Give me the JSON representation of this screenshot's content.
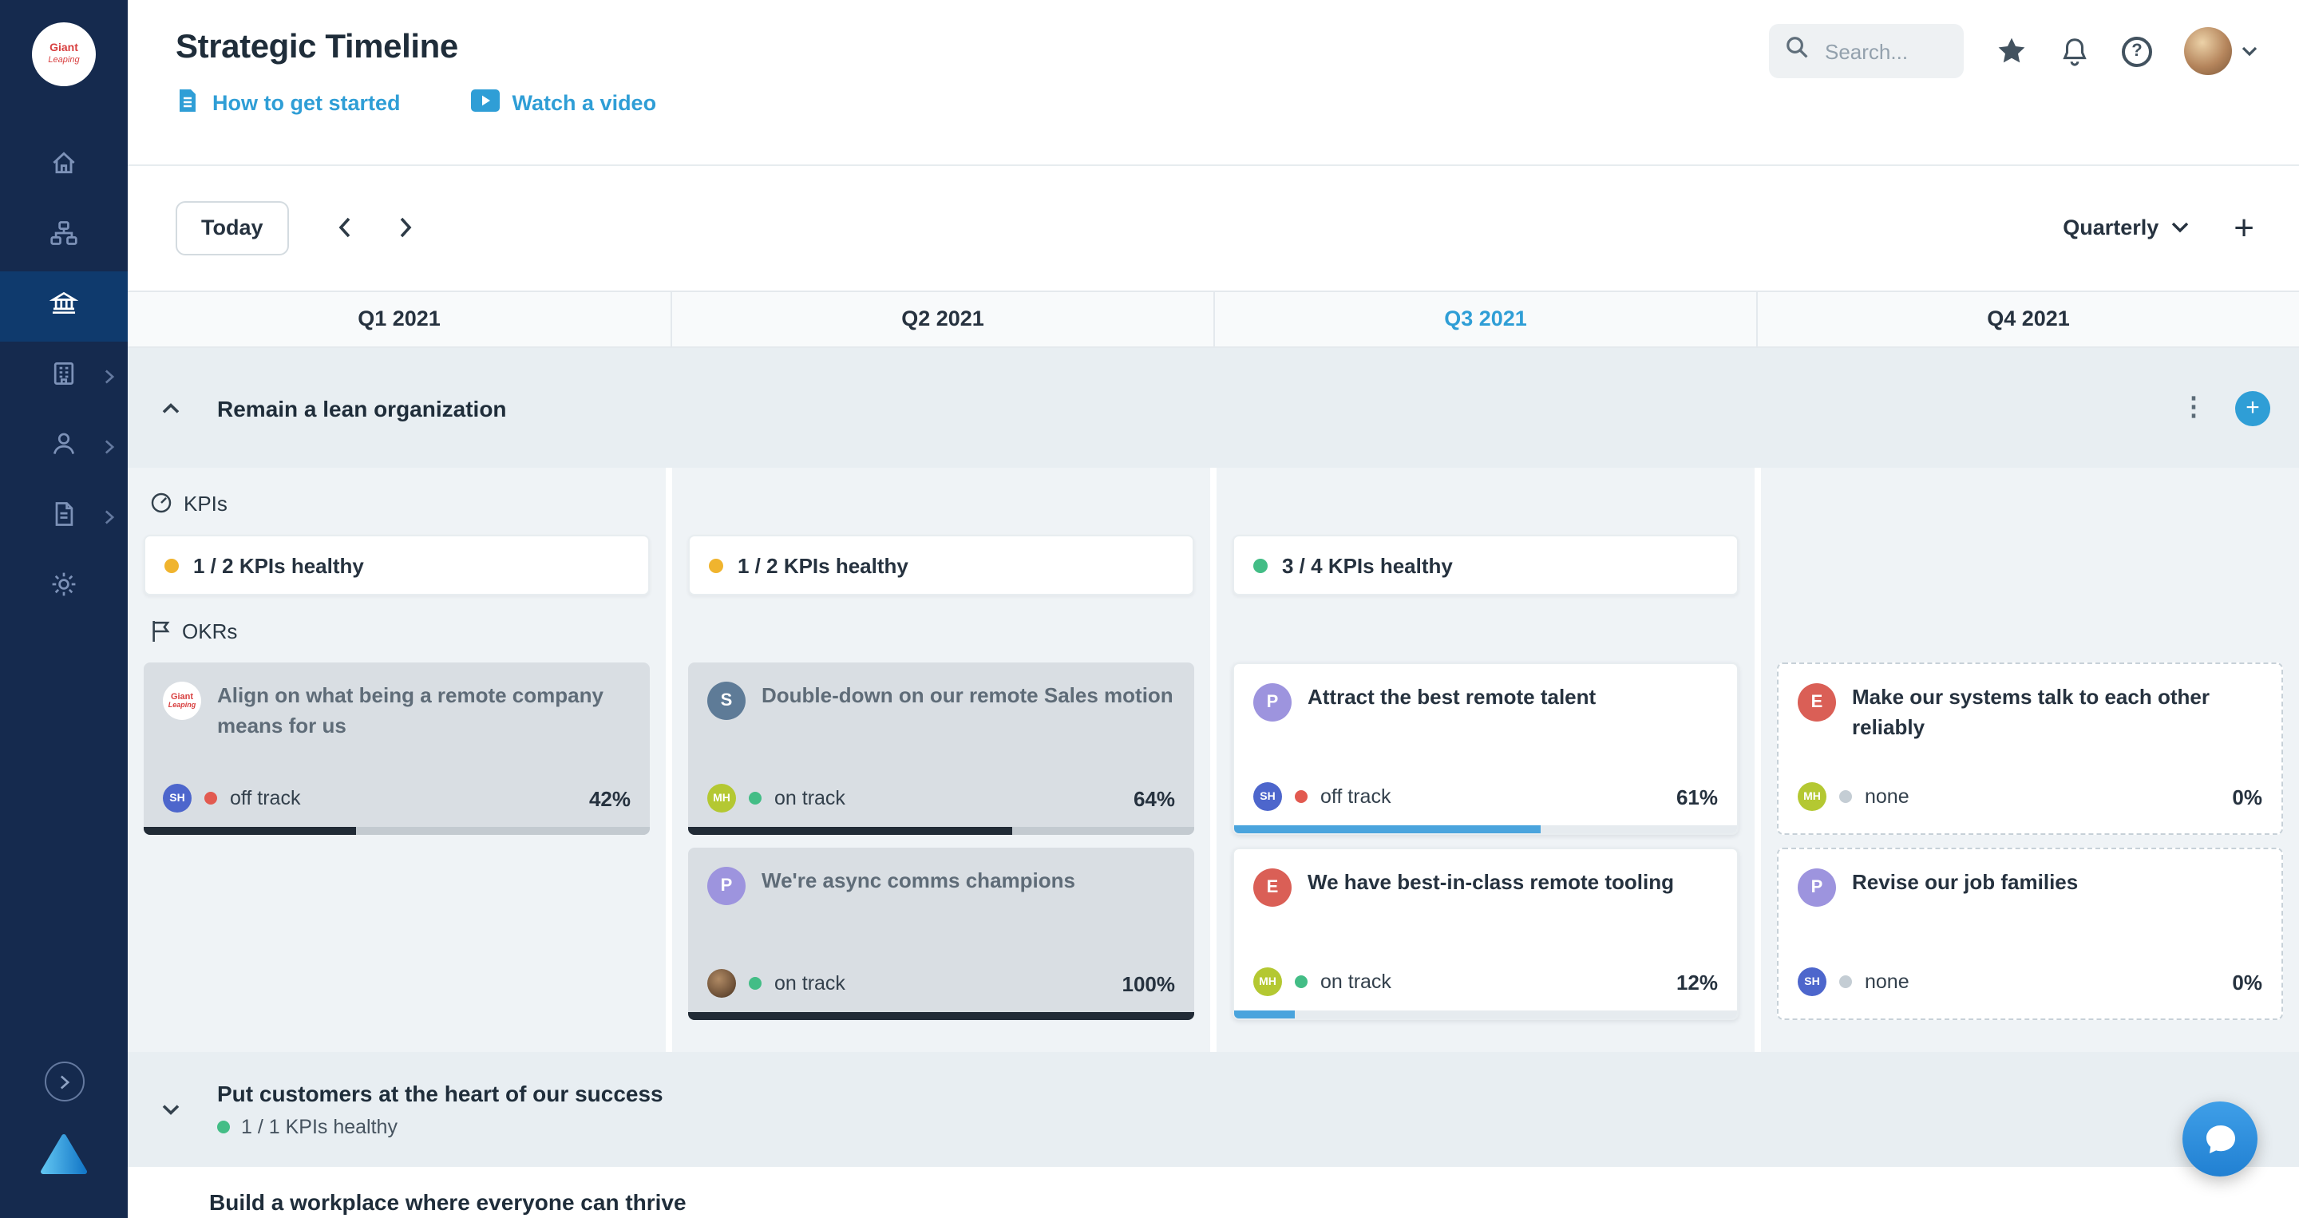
{
  "brand": {
    "logo_line1": "Giant",
    "logo_line2": "Leaping",
    "accent_blue": "#2f9ed6",
    "sidebar_navy": "#152a4e"
  },
  "sidebar": {
    "items": [
      {
        "icon": "home-icon",
        "active": false
      },
      {
        "icon": "org-chart-icon",
        "active": false
      },
      {
        "icon": "bank-icon",
        "active": true
      },
      {
        "icon": "building-icon",
        "active": false,
        "expandable": true
      },
      {
        "icon": "person-icon",
        "active": false,
        "expandable": true
      },
      {
        "icon": "document-icon",
        "active": false,
        "expandable": true
      },
      {
        "icon": "gear-icon",
        "active": false
      }
    ]
  },
  "header": {
    "title": "Strategic Timeline",
    "links": [
      {
        "label": "How to get started",
        "icon": "document-icon"
      },
      {
        "label": "Watch a video",
        "icon": "video-icon"
      }
    ],
    "search_placeholder": "Search..."
  },
  "toolbar": {
    "today": "Today",
    "view": "Quarterly"
  },
  "quarters": [
    {
      "label": "Q1 2021",
      "current": false
    },
    {
      "label": "Q2 2021",
      "current": false
    },
    {
      "label": "Q3 2021",
      "current": true
    },
    {
      "label": "Q4 2021",
      "current": false
    }
  ],
  "status_colors": {
    "healthy_green": "#43bd86",
    "warning_yellow": "#f0b42e",
    "off_track_red": "#e25a50",
    "none_gray": "#c4cdd4",
    "progress_blue": "#4aa4dd",
    "progress_black": "#212b36"
  },
  "section1": {
    "title": "Remain a lean organization",
    "kpis_label": "KPIs",
    "okrs_label": "OKRs",
    "kpi_cards": [
      {
        "quarter": 0,
        "text": "1 / 2 KPIs healthy",
        "dot": "#f0b42e"
      },
      {
        "quarter": 1,
        "text": "1 / 2 KPIs healthy",
        "dot": "#f0b42e"
      },
      {
        "quarter": 2,
        "text": "3 / 4 KPIs healthy",
        "dot": "#43bd86"
      }
    ],
    "okr_cards": [
      {
        "quarter": 0,
        "row": 0,
        "state": "past",
        "title": "Align on what being a remote company means for us",
        "avatar": {
          "type": "logo",
          "line1": "Giant",
          "line2": "Leaping"
        },
        "owner": {
          "type": "initials",
          "text": "SH",
          "color": "#4d66cc"
        },
        "status": {
          "label": "off track",
          "color": "#e25a50"
        },
        "percent": "42%",
        "progress": 42
      },
      {
        "quarter": 1,
        "row": 0,
        "state": "past",
        "title": "Double-down on our remote Sales motion",
        "avatar": {
          "type": "letter",
          "text": "S",
          "color": "#5e7b97"
        },
        "owner": {
          "type": "initials",
          "text": "MH",
          "color": "#b4c832"
        },
        "status": {
          "label": "on track",
          "color": "#43bd86"
        },
        "percent": "64%",
        "progress": 64
      },
      {
        "quarter": 1,
        "row": 1,
        "state": "past",
        "title": "We're async comms champions",
        "avatar": {
          "type": "letter",
          "text": "P",
          "color": "#9d94de"
        },
        "owner": {
          "type": "photo"
        },
        "status": {
          "label": "on track",
          "color": "#43bd86"
        },
        "percent": "100%",
        "progress": 100
      },
      {
        "quarter": 2,
        "row": 0,
        "state": "current",
        "title": "Attract the best remote talent",
        "avatar": {
          "type": "letter",
          "text": "P",
          "color": "#9d94de"
        },
        "owner": {
          "type": "initials",
          "text": "SH",
          "color": "#4d66cc"
        },
        "status": {
          "label": "off track",
          "color": "#e25a50"
        },
        "percent": "61%",
        "progress": 61
      },
      {
        "quarter": 2,
        "row": 1,
        "state": "current",
        "title": "We have best-in-class remote tooling",
        "avatar": {
          "type": "letter",
          "text": "E",
          "color": "#da5f56"
        },
        "owner": {
          "type": "initials",
          "text": "MH",
          "color": "#b4c832"
        },
        "status": {
          "label": "on track",
          "color": "#43bd86"
        },
        "percent": "12%",
        "progress": 12
      },
      {
        "quarter": 3,
        "row": 0,
        "state": "future",
        "title": "Make our systems talk to each other reliably",
        "avatar": {
          "type": "letter",
          "text": "E",
          "color": "#da5f56"
        },
        "owner": {
          "type": "initials",
          "text": "MH",
          "color": "#b4c832"
        },
        "status": {
          "label": "none",
          "color": "#c4cdd4"
        },
        "percent": "0%",
        "progress": 0
      },
      {
        "quarter": 3,
        "row": 1,
        "state": "future",
        "title": "Revise our job families",
        "avatar": {
          "type": "letter",
          "text": "P",
          "color": "#9d94de"
        },
        "owner": {
          "type": "initials",
          "text": "SH",
          "color": "#4d66cc"
        },
        "status": {
          "label": "none",
          "color": "#c4cdd4"
        },
        "percent": "0%",
        "progress": 0
      }
    ]
  },
  "section2": {
    "title": "Put customers at the heart of our success",
    "kpi_summary": "1 / 1 KPIs healthy",
    "dot_color": "#43bd86"
  },
  "section3": {
    "title": "Build a workplace where everyone can thrive"
  }
}
